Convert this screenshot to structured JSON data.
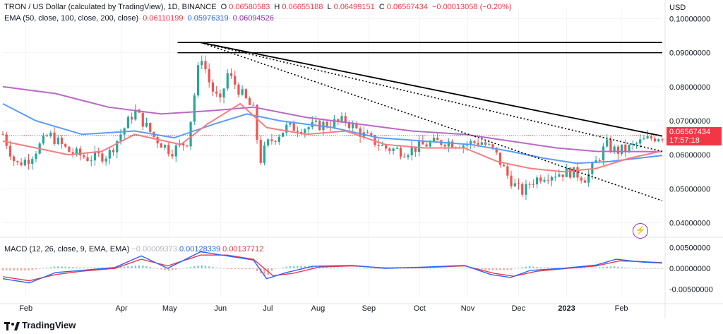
{
  "header": {
    "symbol": "TRON / US Dollar (calculated by TradingView), 1D, BINANCE",
    "open_label": "O",
    "open": "0.06580583",
    "high_label": "H",
    "high": "0.06655188",
    "low_label": "L",
    "low": "0.06499151",
    "close_label": "C",
    "close": "0.06567434",
    "change": "−0.00013058 (−0.20%)"
  },
  "ema": {
    "label": "EMA (50, close, 100, close, 200, close)",
    "v50": "0.06110199",
    "v100": "0.05976319",
    "v200": "0.06094526"
  },
  "macd": {
    "label": "MACD (12, 26, close, 9, EMA, EMA)",
    "hist": "−0.00009373",
    "macd": "0.00128339",
    "signal": "0.00137712"
  },
  "axis_unit": "USD",
  "price_tag": {
    "price": "0.06567434",
    "countdown": "17:57:18"
  },
  "footer": {
    "brand": "TradingView"
  },
  "colors": {
    "up": "#26a69a",
    "down": "#ef5350",
    "ema50": "#f77c80",
    "ema100": "#5b9cf6",
    "ema200": "#ba68c8",
    "macd_line": "#2962ff",
    "signal_line": "#ff6d00",
    "trendline": "#000000",
    "price_tag": "#f23645"
  },
  "chart_data": {
    "type": "candlestick",
    "instrument": "TRON / US Dollar",
    "interval": "1D",
    "exchange": "BINANCE",
    "price_axis": {
      "ticks": [
        "0.10000000",
        "0.09000000",
        "0.08000000",
        "0.07000000",
        "0.06000000",
        "0.05000000",
        "0.04000000"
      ],
      "range": [
        0.037,
        0.103
      ]
    },
    "macd_axis": {
      "ticks": [
        "0.00500000",
        "0.00000000",
        "-0.00500000"
      ],
      "range": [
        -0.0068,
        0.0068
      ]
    },
    "x_ticks": [
      "Feb",
      "Apr",
      "May",
      "Jun",
      "Jul",
      "Aug",
      "Sep",
      "Oct",
      "Nov",
      "Dec",
      "2023",
      "Feb"
    ],
    "price_path": [
      [
        0,
        0.066
      ],
      [
        0.02,
        0.057
      ],
      [
        0.04,
        0.059
      ],
      [
        0.07,
        0.066
      ],
      [
        0.1,
        0.061
      ],
      [
        0.13,
        0.059
      ],
      [
        0.16,
        0.06
      ],
      [
        0.2,
        0.073
      ],
      [
        0.23,
        0.065
      ],
      [
        0.255,
        0.061
      ],
      [
        0.28,
        0.064
      ],
      [
        0.3,
        0.09
      ],
      [
        0.315,
        0.08
      ],
      [
        0.33,
        0.075
      ],
      [
        0.34,
        0.084
      ],
      [
        0.355,
        0.08
      ],
      [
        0.365,
        0.077
      ],
      [
        0.38,
        0.073
      ],
      [
        0.39,
        0.058
      ],
      [
        0.4,
        0.063
      ],
      [
        0.43,
        0.068
      ],
      [
        0.46,
        0.068
      ],
      [
        0.49,
        0.069
      ],
      [
        0.52,
        0.07
      ],
      [
        0.545,
        0.066
      ],
      [
        0.58,
        0.062
      ],
      [
        0.61,
        0.061
      ],
      [
        0.64,
        0.063
      ],
      [
        0.67,
        0.064
      ],
      [
        0.7,
        0.063
      ],
      [
        0.725,
        0.064
      ],
      [
        0.745,
        0.061
      ],
      [
        0.765,
        0.054
      ],
      [
        0.78,
        0.05
      ],
      [
        0.79,
        0.049
      ],
      [
        0.8,
        0.052
      ],
      [
        0.82,
        0.054
      ],
      [
        0.86,
        0.055
      ],
      [
        0.875,
        0.054
      ],
      [
        0.885,
        0.053
      ],
      [
        0.9,
        0.058
      ],
      [
        0.915,
        0.063
      ],
      [
        0.93,
        0.061
      ],
      [
        0.95,
        0.062
      ],
      [
        0.97,
        0.064
      ],
      [
        0.985,
        0.065
      ],
      [
        1,
        0.0657
      ]
    ],
    "ema50_path": [
      [
        0,
        0.064
      ],
      [
        0.05,
        0.062
      ],
      [
        0.1,
        0.06
      ],
      [
        0.15,
        0.061
      ],
      [
        0.2,
        0.066
      ],
      [
        0.27,
        0.063
      ],
      [
        0.31,
        0.069
      ],
      [
        0.36,
        0.075
      ],
      [
        0.4,
        0.068
      ],
      [
        0.46,
        0.066
      ],
      [
        0.52,
        0.067
      ],
      [
        0.58,
        0.063
      ],
      [
        0.64,
        0.062
      ],
      [
        0.7,
        0.062
      ],
      [
        0.75,
        0.058
      ],
      [
        0.8,
        0.056
      ],
      [
        0.85,
        0.055
      ],
      [
        0.9,
        0.056
      ],
      [
        0.95,
        0.059
      ],
      [
        1,
        0.0611
      ]
    ],
    "ema100_path": [
      [
        0,
        0.075
      ],
      [
        0.05,
        0.07
      ],
      [
        0.12,
        0.066
      ],
      [
        0.2,
        0.067
      ],
      [
        0.26,
        0.065
      ],
      [
        0.32,
        0.069
      ],
      [
        0.37,
        0.072
      ],
      [
        0.42,
        0.07
      ],
      [
        0.5,
        0.068
      ],
      [
        0.57,
        0.065
      ],
      [
        0.64,
        0.064
      ],
      [
        0.71,
        0.063
      ],
      [
        0.77,
        0.061
      ],
      [
        0.82,
        0.059
      ],
      [
        0.87,
        0.0575
      ],
      [
        0.92,
        0.058
      ],
      [
        1,
        0.0598
      ]
    ],
    "ema200_path": [
      [
        0,
        0.08
      ],
      [
        0.08,
        0.078
      ],
      [
        0.16,
        0.074
      ],
      [
        0.24,
        0.072
      ],
      [
        0.32,
        0.073
      ],
      [
        0.38,
        0.074
      ],
      [
        0.46,
        0.071
      ],
      [
        0.54,
        0.069
      ],
      [
        0.62,
        0.067
      ],
      [
        0.7,
        0.066
      ],
      [
        0.77,
        0.064
      ],
      [
        0.84,
        0.062
      ],
      [
        0.9,
        0.061
      ],
      [
        1,
        0.0609
      ]
    ],
    "macd_path": [
      [
        0,
        -0.0025
      ],
      [
        0.04,
        -0.0035
      ],
      [
        0.08,
        -0.001
      ],
      [
        0.12,
        -0.0005
      ],
      [
        0.17,
        0.0002
      ],
      [
        0.21,
        0.003
      ],
      [
        0.25,
        0.0
      ],
      [
        0.3,
        0.004
      ],
      [
        0.34,
        0.003
      ],
      [
        0.38,
        0.002
      ],
      [
        0.4,
        -0.0025
      ],
      [
        0.43,
        -0.001
      ],
      [
        0.47,
        0.0005
      ],
      [
        0.53,
        0.0007
      ],
      [
        0.58,
        0.0
      ],
      [
        0.64,
        0.0003
      ],
      [
        0.7,
        0.0007
      ],
      [
        0.74,
        -0.0015
      ],
      [
        0.77,
        -0.0022
      ],
      [
        0.8,
        -0.0005
      ],
      [
        0.85,
        0.0
      ],
      [
        0.9,
        0.0008
      ],
      [
        0.93,
        0.0022
      ],
      [
        0.97,
        0.0015
      ],
      [
        1,
        0.00128
      ]
    ],
    "signal_path": [
      [
        0,
        -0.002
      ],
      [
        0.04,
        -0.003
      ],
      [
        0.08,
        -0.0015
      ],
      [
        0.12,
        -0.0007
      ],
      [
        0.17,
        0.0
      ],
      [
        0.21,
        0.0022
      ],
      [
        0.25,
        0.0006
      ],
      [
        0.3,
        0.0032
      ],
      [
        0.34,
        0.0032
      ],
      [
        0.38,
        0.0022
      ],
      [
        0.41,
        -0.0018
      ],
      [
        0.44,
        -0.0012
      ],
      [
        0.48,
        0.0003
      ],
      [
        0.53,
        0.0006
      ],
      [
        0.58,
        0.0001
      ],
      [
        0.64,
        0.0002
      ],
      [
        0.7,
        0.0006
      ],
      [
        0.745,
        -0.0012
      ],
      [
        0.775,
        -0.0019
      ],
      [
        0.81,
        -0.0007
      ],
      [
        0.85,
        -0.0001
      ],
      [
        0.9,
        0.0006
      ],
      [
        0.935,
        0.0018
      ],
      [
        0.97,
        0.0016
      ],
      [
        1,
        0.00138
      ]
    ],
    "horizontal_levels": [
      0.093,
      0.09
    ],
    "trendlines": [
      {
        "style": "solid",
        "from": [
          0.3,
          0.093
        ],
        "to": [
          1,
          0.0655
        ]
      },
      {
        "style": "dotted",
        "from": [
          0.3,
          0.093
        ],
        "to": [
          1,
          0.061
        ]
      },
      {
        "style": "dotted",
        "from": [
          0.3,
          0.093
        ],
        "to": [
          1,
          0.0465
        ]
      }
    ]
  }
}
